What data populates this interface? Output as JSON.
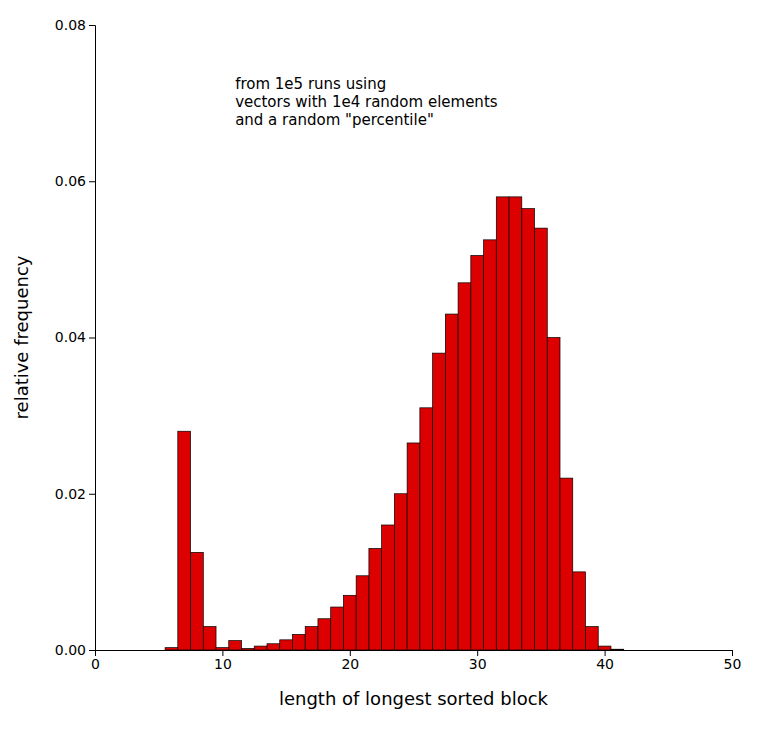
{
  "chart_data": {
    "type": "bar",
    "xlabel": "length of longest sorted block",
    "ylabel": "relative frequency",
    "annotation": "from 1e5 runs using\nvectors with 1e4 random elements\nand a random \"percentile\"",
    "color": "#dd0000",
    "x": [
      1,
      2,
      3,
      4,
      5,
      6,
      7,
      8,
      9,
      10,
      11,
      12,
      13,
      14,
      15,
      16,
      17,
      18,
      19,
      20,
      21,
      22,
      23,
      24,
      25,
      26,
      27,
      28,
      29,
      30,
      31,
      32,
      33,
      34,
      35,
      36,
      37,
      38,
      39,
      40,
      41,
      42,
      43,
      44,
      45,
      46,
      47,
      48,
      49,
      50
    ],
    "values": [
      0.0,
      0.0,
      0.0,
      0.0,
      0.0,
      0.0003,
      0.028,
      0.0125,
      0.003,
      0.0003,
      0.0012,
      0.0002,
      0.0005,
      0.0008,
      0.0013,
      0.002,
      0.003,
      0.004,
      0.0055,
      0.007,
      0.0095,
      0.013,
      0.016,
      0.02,
      0.0265,
      0.031,
      0.038,
      0.043,
      0.047,
      0.0505,
      0.0525,
      0.058,
      0.058,
      0.0565,
      0.054,
      0.04,
      0.022,
      0.01,
      0.003,
      0.0005,
      0.0001,
      0.0,
      0.0,
      0.0,
      0.0,
      0.0,
      0.0,
      0.0,
      0.0,
      0.0
    ],
    "xlim": [
      0,
      50
    ],
    "xticks": [
      0,
      10,
      20,
      30,
      40,
      50
    ],
    "ylim": [
      0,
      0.08
    ],
    "yticks": [
      {
        "value": 0.0,
        "label": "0.00"
      },
      {
        "value": 0.02,
        "label": "0.02"
      },
      {
        "value": 0.04,
        "label": "0.04"
      },
      {
        "value": 0.06,
        "label": "0.06"
      },
      {
        "value": 0.08,
        "label": "0.08"
      }
    ],
    "grid": false
  }
}
